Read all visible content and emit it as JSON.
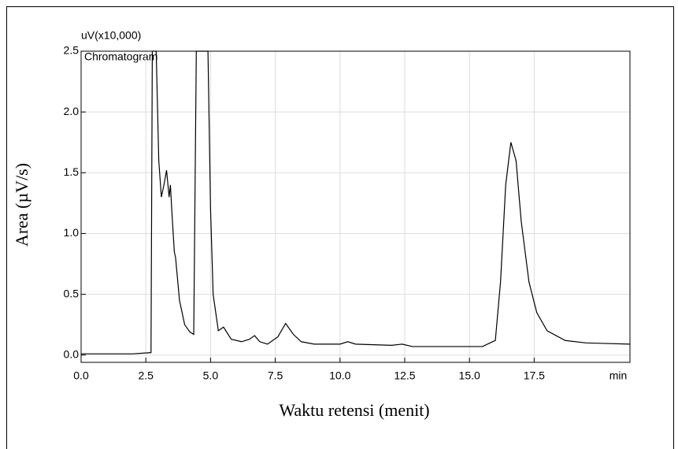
{
  "chart_data": {
    "type": "line",
    "y_unit_label": "uV(x10,000)",
    "x_unit_label": "min",
    "xlabel": "Waktu retensi (menit)",
    "ylabel": "Area (µV/s)",
    "x": [
      0,
      2.0,
      2.7,
      2.75,
      2.9,
      3.0,
      3.1,
      3.2,
      3.3,
      3.4,
      3.45,
      3.5,
      3.6,
      3.65,
      3.8,
      4.0,
      4.2,
      4.35,
      4.45,
      4.9,
      5.0,
      5.1,
      5.3,
      5.5,
      5.8,
      6.2,
      6.5,
      6.7,
      6.9,
      7.2,
      7.6,
      7.9,
      8.2,
      8.5,
      9.0,
      10.0,
      10.3,
      10.6,
      12.0,
      12.4,
      12.8,
      15.5,
      16.0,
      16.2,
      16.4,
      16.6,
      16.8,
      17.0,
      17.3,
      17.6,
      18.0,
      18.7,
      19.5,
      21.2
    ],
    "series": [
      {
        "name": "Chromatogram",
        "color": "#000000",
        "values": [
          0.01,
          0.01,
          0.02,
          2.5,
          2.5,
          1.6,
          1.3,
          1.4,
          1.52,
          1.3,
          1.4,
          1.2,
          0.85,
          0.8,
          0.45,
          0.25,
          0.19,
          0.17,
          2.5,
          2.5,
          1.2,
          0.5,
          0.2,
          0.23,
          0.13,
          0.11,
          0.13,
          0.16,
          0.11,
          0.09,
          0.15,
          0.26,
          0.17,
          0.11,
          0.09,
          0.09,
          0.11,
          0.09,
          0.08,
          0.09,
          0.07,
          0.07,
          0.12,
          0.6,
          1.4,
          1.75,
          1.6,
          1.1,
          0.6,
          0.35,
          0.2,
          0.12,
          0.1,
          0.09
        ]
      }
    ],
    "xlim": [
      0,
      21.2
    ],
    "ylim": [
      -0.06,
      2.5
    ],
    "xticks": [
      {
        "value": 0,
        "label": "0.0"
      },
      2.5,
      {
        "value": 5,
        "label": "5.0"
      },
      7.5,
      {
        "value": 10,
        "label": "10.0"
      },
      12.5,
      {
        "value": 15,
        "label": "15.0"
      },
      17.5
    ],
    "yticks": [
      {
        "value": 0,
        "label": "0.0"
      },
      {
        "value": 0.5,
        "label": "0.5"
      },
      {
        "value": 1,
        "label": "1.0"
      },
      {
        "value": 1.5,
        "label": "1.5"
      },
      {
        "value": 2,
        "label": "2.0"
      },
      2.5
    ],
    "grid": true
  }
}
